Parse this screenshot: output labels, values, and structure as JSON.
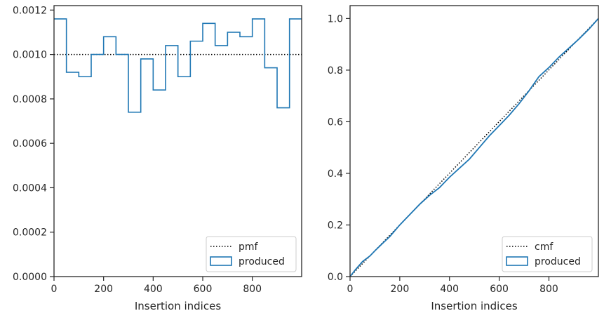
{
  "chart_data": [
    {
      "type": "line",
      "xlabel": "Insertion indices",
      "ylabel": "",
      "xlim": [
        0,
        999
      ],
      "ylim": [
        0,
        0.00122
      ],
      "xticks": [
        0,
        200,
        400,
        600,
        800
      ],
      "xtick_labels": [
        "0",
        "200",
        "400",
        "600",
        "800"
      ],
      "yticks": [
        0,
        0.0002,
        0.0004,
        0.0006,
        0.0008,
        0.001,
        0.0012
      ],
      "ytick_labels": [
        "0.0000",
        "0.0002",
        "0.0004",
        "0.0006",
        "0.0008",
        "0.0010",
        "0.0012"
      ],
      "legend_position": "lower-right",
      "series": [
        {
          "name": "pmf",
          "style": "dotted",
          "color": "#000000",
          "x": [
            0,
            999
          ],
          "y": [
            0.001,
            0.001
          ]
        },
        {
          "name": "produced",
          "style": "step-histogram",
          "color": "#1f77b4",
          "bin_edges": [
            0,
            50,
            100,
            150,
            200,
            250,
            300,
            350,
            400,
            450,
            500,
            550,
            600,
            650,
            700,
            750,
            800,
            850,
            900,
            950,
            999
          ],
          "values": [
            0.00116,
            0.00092,
            0.0009,
            0.001,
            0.00108,
            0.001,
            0.00074,
            0.00098,
            0.00084,
            0.00104,
            0.0009,
            0.00106,
            0.00114,
            0.00104,
            0.0011,
            0.00108,
            0.00116,
            0.00094,
            0.00076,
            0.00116
          ]
        }
      ],
      "legend_entries": [
        "pmf",
        "produced"
      ]
    },
    {
      "type": "line",
      "xlabel": "Insertion indices",
      "ylabel": "",
      "xlim": [
        0,
        999
      ],
      "ylim": [
        0,
        1.05
      ],
      "xticks": [
        0,
        200,
        400,
        600,
        800
      ],
      "xtick_labels": [
        "0",
        "200",
        "400",
        "600",
        "800"
      ],
      "yticks": [
        0,
        0.2,
        0.4,
        0.6,
        0.8,
        1.0
      ],
      "ytick_labels": [
        "0.0",
        "0.2",
        "0.4",
        "0.6",
        "0.8",
        "1.0"
      ],
      "legend_position": "lower-right",
      "series": [
        {
          "name": "cmf",
          "style": "dotted",
          "color": "#000000",
          "x": [
            0,
            999
          ],
          "y": [
            0,
            1.0
          ]
        },
        {
          "name": "produced",
          "style": "step-line",
          "color": "#1f77b4",
          "x": [
            0,
            20,
            50,
            80,
            100,
            130,
            160,
            200,
            240,
            280,
            320,
            360,
            400,
            440,
            480,
            520,
            560,
            600,
            640,
            680,
            720,
            760,
            800,
            840,
            880,
            920,
            960,
            999
          ],
          "y": [
            0,
            0.025,
            0.058,
            0.08,
            0.1,
            0.128,
            0.155,
            0.2,
            0.24,
            0.28,
            0.315,
            0.345,
            0.385,
            0.42,
            0.455,
            0.5,
            0.545,
            0.585,
            0.625,
            0.67,
            0.72,
            0.775,
            0.81,
            0.85,
            0.885,
            0.92,
            0.958,
            1.0
          ]
        }
      ],
      "legend_entries": [
        "cmf",
        "produced"
      ]
    }
  ]
}
